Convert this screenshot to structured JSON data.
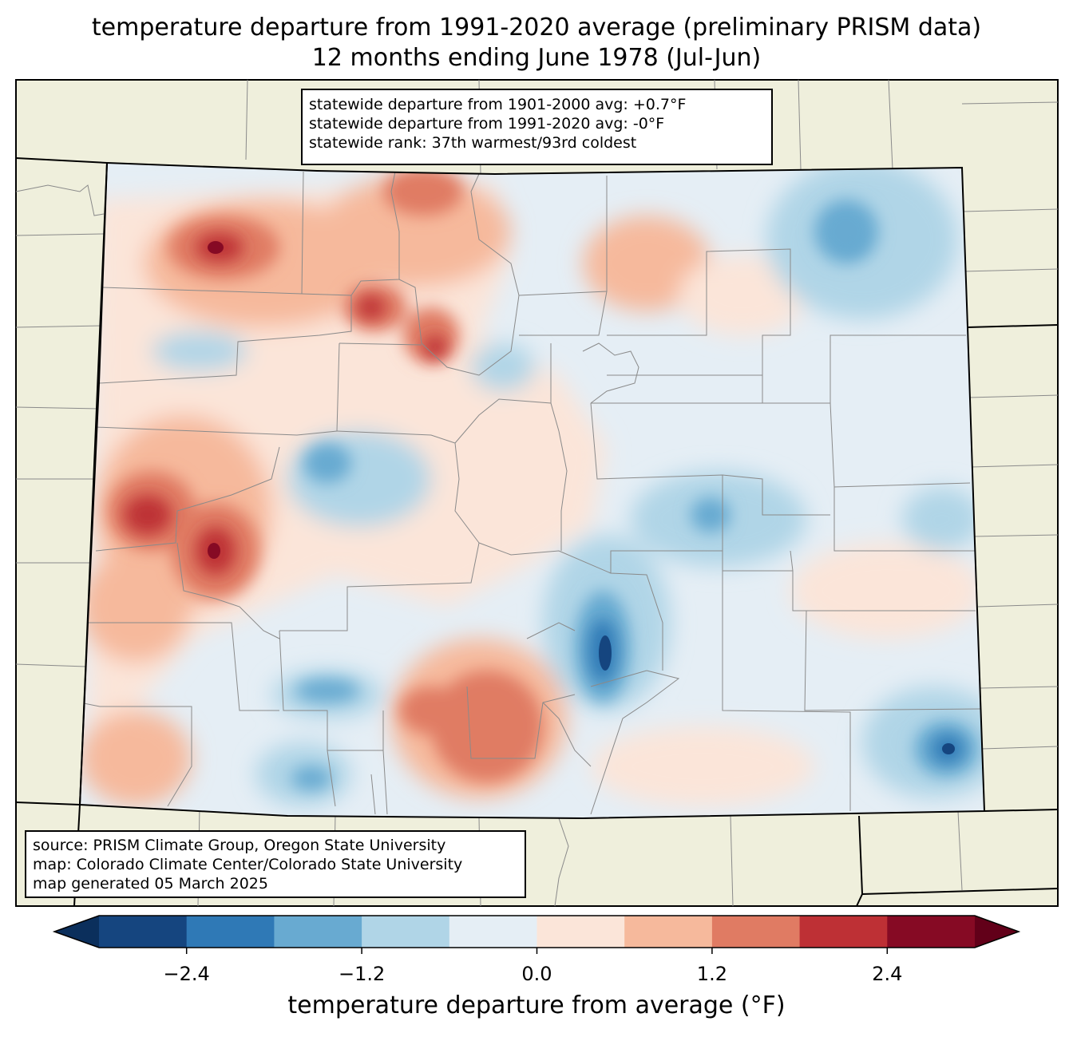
{
  "title_line1": "temperature departure from 1991-2020 average (preliminary PRISM data)",
  "title_line2": "12 months ending June 1978 (Jul-Jun)",
  "stats": {
    "line1": "statewide departure from 1901-2000 avg: +0.7°F",
    "line2": "statewide departure from 1991-2020 avg: -0°F",
    "line3": "statewide rank: 37th warmest/93rd coldest"
  },
  "source": {
    "line1": "source: PRISM Climate Group, Oregon State University",
    "line2": "map: Colorado Climate Center/Colorado State University",
    "line3": "map generated 05 March 2025"
  },
  "colorbar": {
    "label": "temperature departure from average (°F)",
    "bounds": [
      -3.0,
      3.0
    ],
    "step": 0.6,
    "ticks": [
      "−2.4",
      "−1.2",
      "0.0",
      "1.2",
      "2.4"
    ],
    "tick_values": [
      -2.4,
      -1.2,
      0.0,
      1.2,
      2.4
    ],
    "colors": [
      "#15457f",
      "#2f79b6",
      "#68aad1",
      "#b0d5e7",
      "#e5eef5",
      "#fbe5d9",
      "#f6b99c",
      "#e07b63",
      "#be3035",
      "#860a24"
    ],
    "under_color": "#0b2f5c",
    "over_color": "#620019"
  },
  "colors": {
    "land": "#efefdc",
    "county_line": "#8a8a8a",
    "border": "#000000"
  }
}
